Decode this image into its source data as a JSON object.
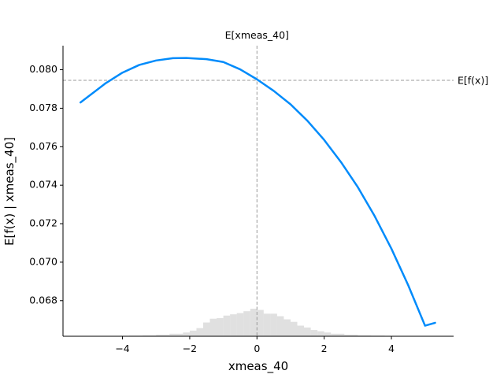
{
  "chart_data": {
    "type": "line",
    "xlabel": "xmeas_40",
    "ylabel": "E[f(x) | xmeas_40]",
    "xlim": [
      -5.77,
      5.85
    ],
    "ylim": [
      0.06615,
      0.08125
    ],
    "xticks": [
      -4,
      -2,
      0,
      2,
      4
    ],
    "xtick_labels": [
      "−4",
      "−2",
      "0",
      "2",
      "4"
    ],
    "yticks": [
      0.068,
      0.07,
      0.072,
      0.074,
      0.076,
      0.078,
      0.08
    ],
    "ytick_labels": [
      "0.068",
      "0.070",
      "0.072",
      "0.074",
      "0.076",
      "0.078",
      "0.080"
    ],
    "grid": false,
    "series": [
      {
        "color": "#008bfb",
        "x": [
          -5.25,
          -4.5,
          -4.0,
          -3.5,
          -3.0,
          -2.5,
          -2.1,
          -1.5,
          -1.0,
          -0.5,
          0.0,
          0.5,
          1.0,
          1.5,
          2.0,
          2.5,
          3.0,
          3.5,
          4.0,
          4.5,
          5.0,
          5.3
        ],
        "y": [
          0.0783,
          0.0793,
          0.07985,
          0.08025,
          0.08048,
          0.0806,
          0.08061,
          0.08055,
          0.0804,
          0.08002,
          0.0795,
          0.0789,
          0.0782,
          0.07735,
          0.07635,
          0.0752,
          0.0739,
          0.0724,
          0.0707,
          0.0688,
          0.0667,
          0.06685
        ]
      }
    ],
    "annotations": [
      {
        "type": "hline",
        "y": 0.07945,
        "label": "E[f(x)]",
        "color": "#999999"
      },
      {
        "type": "vline",
        "x": 0.0,
        "label": "E[xmeas_40]",
        "color": "#999999"
      }
    ],
    "histogram": {
      "color": "#cccccc",
      "bin_edges": [
        -5.4,
        -5.0,
        -4.6,
        -4.2,
        -3.8,
        -3.4,
        -3.0,
        -2.6,
        -2.2,
        -2.0,
        -1.8,
        -1.6,
        -1.4,
        -1.2,
        -1.0,
        -0.8,
        -0.6,
        -0.4,
        -0.2,
        0.0,
        0.2,
        0.4,
        0.6,
        0.8,
        1.0,
        1.2,
        1.4,
        1.6,
        1.8,
        2.0,
        2.2,
        2.6,
        3.0,
        3.4,
        3.8,
        4.2,
        4.6,
        5.0,
        5.4
      ],
      "counts": [
        0.2,
        0.3,
        0.4,
        0.6,
        1,
        1.5,
        2.5,
        4,
        6,
        9,
        13,
        22,
        28,
        29,
        33,
        35,
        37,
        40,
        44,
        42,
        36,
        36,
        32,
        27,
        23,
        17,
        14,
        10,
        8,
        6,
        4,
        2.5,
        1.5,
        1,
        0.6,
        0.4,
        0.3,
        0.2
      ]
    }
  }
}
